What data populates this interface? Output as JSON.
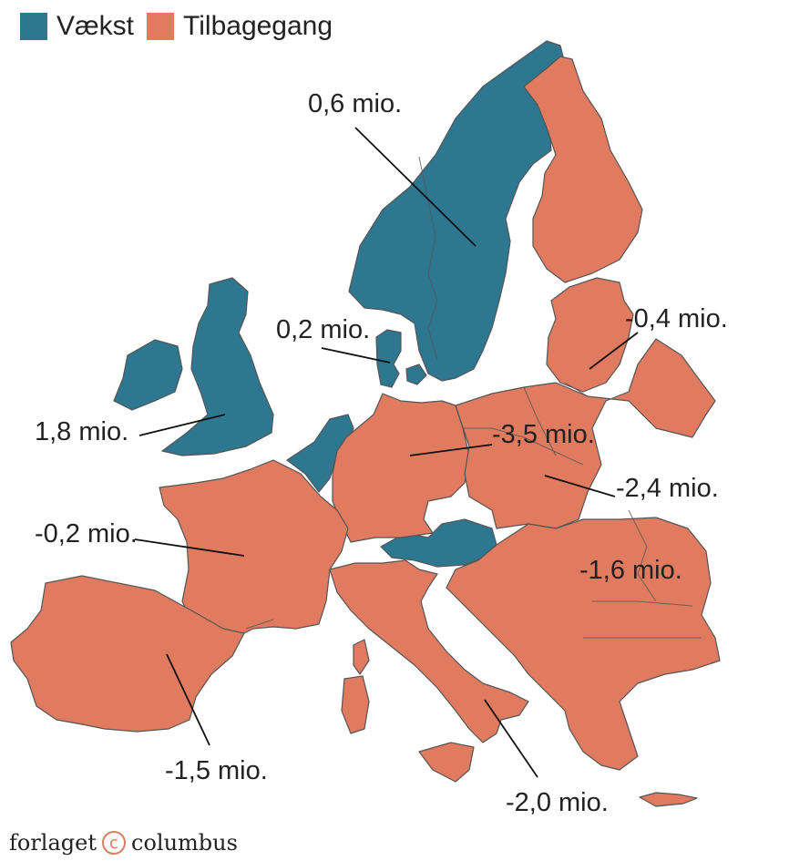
{
  "legend": {
    "growth_label": "Vækst",
    "decline_label": "Tilbagegang",
    "growth_color": "#2e7791",
    "decline_color": "#e07b5f"
  },
  "border_color": "#555555",
  "regions": [
    {
      "name": "Scandinavia",
      "category": "growth",
      "value": "0,6 mio."
    },
    {
      "name": "Denmark",
      "category": "growth",
      "value": "0,2 mio."
    },
    {
      "name": "British Isles",
      "category": "growth",
      "value": "1,8 mio."
    },
    {
      "name": "Finland",
      "category": "decline"
    },
    {
      "name": "Baltics",
      "category": "decline",
      "value": "-0,4 mio."
    },
    {
      "name": "Germany",
      "category": "decline",
      "value": "-3,5 mio."
    },
    {
      "name": "Poland",
      "category": "decline",
      "value": "-2,4 mio."
    },
    {
      "name": "France",
      "category": "decline",
      "value": "-0,2 mio."
    },
    {
      "name": "Iberia",
      "category": "decline",
      "value": "-1,5 mio."
    },
    {
      "name": "Italy",
      "category": "decline",
      "value": "-2,0 mio."
    },
    {
      "name": "Southeast Europe",
      "category": "decline",
      "value": "-1,6 mio."
    }
  ],
  "brand": {
    "left": "forlaget",
    "mark": "c",
    "right": "columbus"
  }
}
